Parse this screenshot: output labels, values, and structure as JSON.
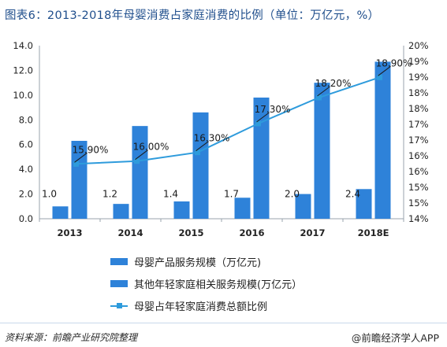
{
  "title": "图表6：2013-2018年母婴消费占家庭消费的比例（单位：万亿元，%）",
  "chart_data": {
    "type": "bar+line",
    "categories": [
      "2013",
      "2014",
      "2015",
      "2016",
      "2017",
      "2018E"
    ],
    "series": [
      {
        "name": "母婴产品服务规模（万亿元)",
        "type": "bar",
        "axis": "left",
        "values": [
          1.0,
          1.2,
          1.4,
          1.7,
          2.0,
          2.4
        ],
        "color": "#2e82d9"
      },
      {
        "name": "其他年轻家庭相关服务规模(万亿元）",
        "type": "bar",
        "axis": "left",
        "values": [
          6.3,
          7.5,
          8.6,
          9.8,
          11.0,
          12.7
        ],
        "color": "#2e82d9"
      },
      {
        "name": "母婴占年轻家庭消费总额比例",
        "type": "line",
        "axis": "right",
        "values": [
          15.9,
          16.0,
          16.3,
          17.3,
          18.2,
          18.9
        ],
        "color": "#2e9bdc"
      }
    ],
    "bar_labels": [
      "1.0",
      "1.2",
      "1.4",
      "1.7",
      "2.0",
      "2.4"
    ],
    "line_labels": [
      "15.90%",
      "16.00%",
      "16.30%",
      "17.30%",
      "18.20%",
      "18.90%"
    ],
    "y_left": {
      "min": 0,
      "max": 14,
      "ticks": [
        "0.0",
        "2.0",
        "4.0",
        "6.0",
        "8.0",
        "10.0",
        "12.0",
        "14.0"
      ]
    },
    "y_right": {
      "min": 14,
      "max": 20,
      "ticks": [
        "14%",
        "15%",
        "15%",
        "16%",
        "16%",
        "17%",
        "17%",
        "18%",
        "18%",
        "19%",
        "19%",
        "20%"
      ]
    },
    "grid": false
  },
  "footer": {
    "source": "资料来源：前瞻产业研究院整理",
    "brand": "@前瞻经济学人APP"
  }
}
